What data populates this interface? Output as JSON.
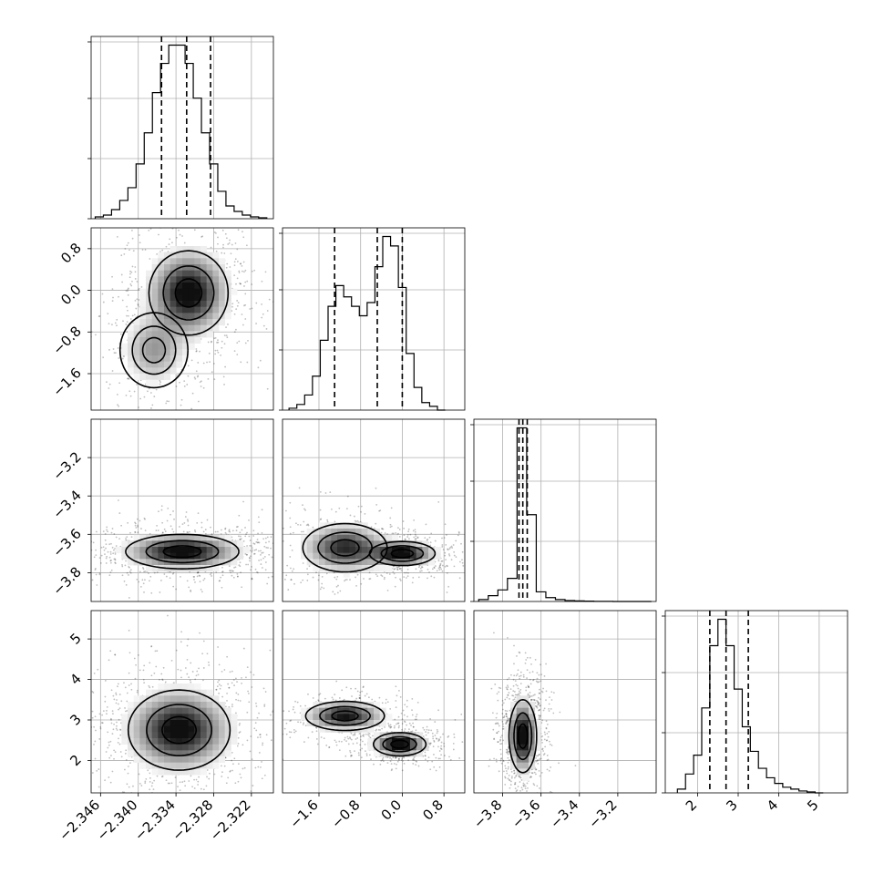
{
  "chart_data": {
    "type": "corner",
    "title": "",
    "grid": true,
    "parameters": [
      {
        "label": "",
        "range": [
          -2.3475,
          -2.3185
        ],
        "ticks": [
          -2.346,
          -2.34,
          -2.334,
          -2.328,
          -2.322
        ],
        "tick_labels": [
          "−2.346",
          "−2.340",
          "−2.334",
          "−2.328",
          "−2.322"
        ],
        "quantiles": [
          -2.3363,
          -2.3323,
          -2.3285
        ],
        "histogram": {
          "bin_centers": [
            -2.3462,
            -2.3449,
            -2.3436,
            -2.3423,
            -2.341,
            -2.3397,
            -2.3384,
            -2.3371,
            -2.3358,
            -2.3345,
            -2.3332,
            -2.3319,
            -2.3306,
            -2.3293,
            -2.328,
            -2.3267,
            -2.3254,
            -2.3241,
            -2.3228,
            -2.3215,
            -2.3202
          ],
          "counts": [
            0.01,
            0.02,
            0.05,
            0.1,
            0.17,
            0.3,
            0.47,
            0.69,
            0.85,
            0.95,
            0.95,
            0.85,
            0.66,
            0.47,
            0.3,
            0.15,
            0.07,
            0.04,
            0.02,
            0.01,
            0.005
          ]
        }
      },
      {
        "label": "",
        "range": [
          -2.3,
          1.2
        ],
        "ticks": [
          -1.6,
          -0.8,
          0.0,
          0.8
        ],
        "tick_labels": [
          "−1.6",
          "−0.8",
          "0.0",
          "0.8"
        ],
        "quantiles": [
          -1.3,
          -0.48,
          0.0
        ],
        "histogram": {
          "bin_centers": [
            -2.1,
            -1.95,
            -1.8,
            -1.65,
            -1.5,
            -1.35,
            -1.2,
            -1.05,
            -0.9,
            -0.75,
            -0.6,
            -0.45,
            -0.3,
            -0.15,
            0.0,
            0.15,
            0.3,
            0.45,
            0.6,
            0.75
          ],
          "counts": [
            0.01,
            0.03,
            0.08,
            0.18,
            0.37,
            0.55,
            0.66,
            0.6,
            0.55,
            0.5,
            0.57,
            0.76,
            0.92,
            0.87,
            0.65,
            0.3,
            0.12,
            0.04,
            0.02,
            0.0
          ]
        }
      },
      {
        "label": "",
        "range": [
          -3.95,
          -3.0
        ],
        "ticks": [
          -3.8,
          -3.6,
          -3.4,
          -3.2
        ],
        "tick_labels": [
          "−3.8",
          "−3.6",
          "−3.4",
          "−3.2"
        ],
        "quantiles": [
          -3.715,
          -3.695,
          -3.672
        ],
        "histogram": {
          "bin_centers": [
            -3.9,
            -3.85,
            -3.8,
            -3.75,
            -3.7,
            -3.65,
            -3.6,
            -3.55,
            -3.5,
            -3.45,
            -3.4,
            -3.35,
            -3.3,
            -3.25,
            -3.2,
            -3.15,
            -3.1,
            -3.05
          ],
          "counts": [
            0.01,
            0.03,
            0.06,
            0.12,
            0.9,
            0.45,
            0.05,
            0.02,
            0.01,
            0.005,
            0.003,
            0.002,
            0.001,
            0.001,
            0.0,
            0.0,
            0.0,
            0.0
          ]
        }
      },
      {
        "label": "",
        "range": [
          1.2,
          5.7
        ],
        "ticks": [
          2,
          3,
          4,
          5
        ],
        "tick_labels": [
          "2",
          "3",
          "4",
          "5"
        ],
        "quantiles": [
          2.3,
          2.7,
          3.25
        ],
        "histogram": {
          "bin_centers": [
            1.6,
            1.8,
            2.0,
            2.2,
            2.4,
            2.6,
            2.8,
            3.0,
            3.2,
            3.4,
            3.6,
            3.8,
            4.0,
            4.2,
            4.4,
            4.6,
            4.8,
            5.0
          ],
          "counts": [
            0.02,
            0.1,
            0.2,
            0.45,
            0.78,
            0.92,
            0.78,
            0.55,
            0.35,
            0.22,
            0.13,
            0.08,
            0.05,
            0.03,
            0.02,
            0.01,
            0.005,
            0.0
          ]
        }
      }
    ],
    "pair_densities": [
      {
        "x": 0,
        "y": 1,
        "components": [
          {
            "cx": -2.332,
            "cy": -0.05,
            "sx": 0.0035,
            "sy": 0.45,
            "w": 0.7,
            "rot": 0.0
          },
          {
            "cx": -2.3375,
            "cy": -1.15,
            "sx": 0.003,
            "sy": 0.4,
            "w": 0.3,
            "rot": 0.0
          }
        ]
      },
      {
        "x": 0,
        "y": 2,
        "components": [
          {
            "cx": -2.333,
            "cy": -3.69,
            "sx": 0.005,
            "sy": 0.05,
            "w": 1.0,
            "rot": 0.0
          }
        ]
      },
      {
        "x": 1,
        "y": 2,
        "components": [
          {
            "cx": 0.0,
            "cy": -3.7,
            "sx": 0.35,
            "sy": 0.035,
            "w": 0.55,
            "rot": 0.0
          },
          {
            "cx": -1.1,
            "cy": -3.67,
            "sx": 0.45,
            "sy": 0.07,
            "w": 0.45,
            "rot": 0.0
          }
        ]
      },
      {
        "x": 0,
        "y": 3,
        "components": [
          {
            "cx": -2.3335,
            "cy": 2.75,
            "sx": 0.0045,
            "sy": 0.55,
            "w": 1.0,
            "rot": -0.4
          }
        ]
      },
      {
        "x": 1,
        "y": 3,
        "components": [
          {
            "cx": -1.1,
            "cy": 3.1,
            "sx": 0.42,
            "sy": 0.2,
            "w": 0.45,
            "rot": 0.62
          },
          {
            "cx": -0.05,
            "cy": 2.4,
            "sx": 0.28,
            "sy": 0.16,
            "w": 0.55,
            "rot": 0.62
          }
        ]
      },
      {
        "x": 2,
        "y": 3,
        "components": [
          {
            "cx": -3.695,
            "cy": 2.6,
            "sx": 0.04,
            "sy": 0.5,
            "w": 1.0,
            "rot": 0.0
          }
        ]
      }
    ]
  }
}
